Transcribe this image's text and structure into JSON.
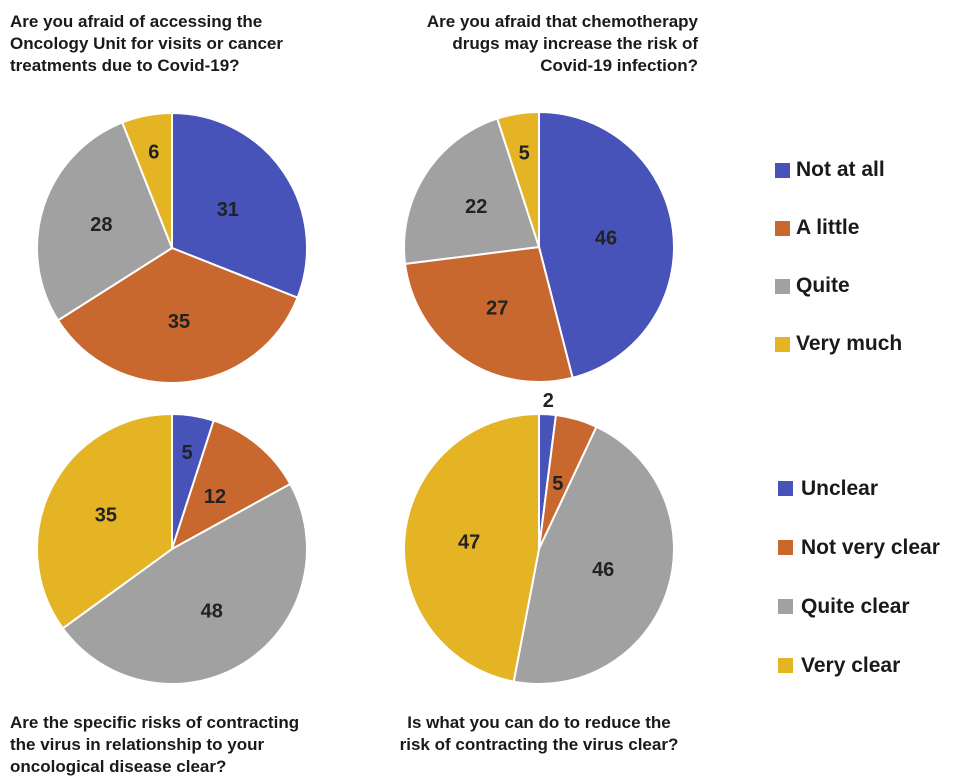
{
  "legends": [
    {
      "entries": [
        {
          "label": "Not at all",
          "color": "#4753b8"
        },
        {
          "label": "A little",
          "color": "#c8672e"
        },
        {
          "label": "Quite",
          "color": "#a1a1a1"
        },
        {
          "label": "Very much",
          "color": "#e4b425"
        }
      ]
    },
    {
      "entries": [
        {
          "label": "Unclear",
          "color": "#4753b8"
        },
        {
          "label": "Not very clear",
          "color": "#c8672e"
        },
        {
          "label": "Quite clear",
          "color": "#a1a1a1"
        },
        {
          "label": "Very clear",
          "color": "#e4b425"
        }
      ]
    }
  ],
  "chart_data": [
    {
      "type": "pie",
      "title": [
        "Are you afraid of accessing the",
        "Oncology Unit for visits or cancer",
        "treatments due to Covid-19?"
      ],
      "categories": [
        "Not at all",
        "A little",
        "Quite",
        "Very much"
      ],
      "values": [
        31,
        35,
        28,
        6
      ],
      "labels": [
        "31",
        "35",
        "28",
        "6"
      ]
    },
    {
      "type": "pie",
      "title": [
        "Are you afraid that chemotherapy",
        "drugs may increase the risk of",
        "Covid-19 infection?"
      ],
      "categories": [
        "Not at all",
        "A little",
        "Quite",
        "Very much"
      ],
      "values": [
        46,
        27,
        22,
        5
      ],
      "labels": [
        "46",
        "27",
        "22",
        "5"
      ]
    },
    {
      "type": "pie",
      "title": [
        "Are the specific risks of contracting",
        "the virus in relationship to your",
        "oncological disease clear?"
      ],
      "categories": [
        "Unclear",
        "Not very clear",
        "Quite clear",
        "Very clear"
      ],
      "values": [
        5,
        12,
        48,
        35
      ],
      "labels": [
        "5",
        "12",
        "48",
        "35"
      ]
    },
    {
      "type": "pie",
      "title": [
        "Is what you can do to reduce the",
        "risk of contracting the virus clear?"
      ],
      "categories": [
        "Unclear",
        "Not very clear",
        "Quite clear",
        "Very clear"
      ],
      "values": [
        2,
        5,
        46,
        47
      ],
      "labels": [
        "2",
        "5",
        "46",
        "47"
      ]
    }
  ]
}
